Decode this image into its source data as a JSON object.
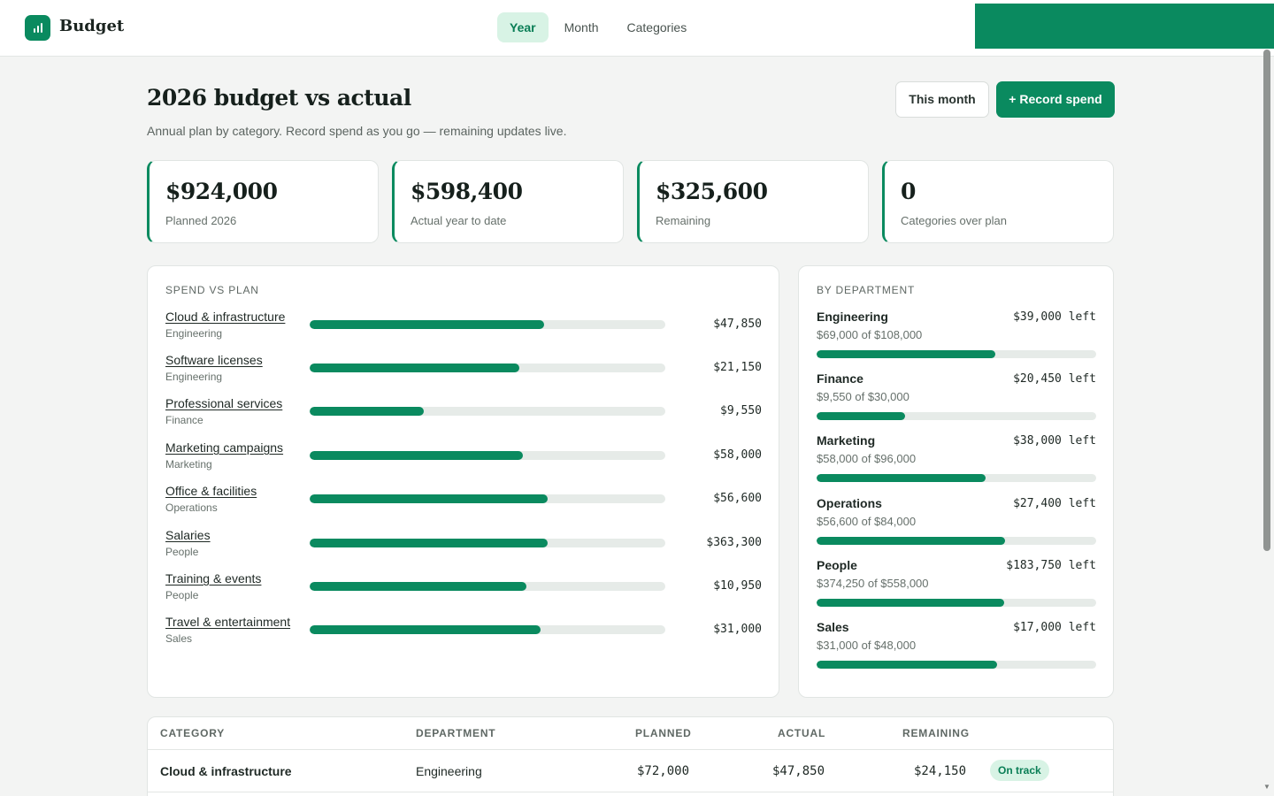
{
  "app": {
    "brand": "Budget"
  },
  "nav": {
    "tabs": [
      {
        "label": "Year",
        "active": true
      },
      {
        "label": "Month",
        "active": false
      },
      {
        "label": "Categories",
        "active": false
      }
    ]
  },
  "header": {
    "title": "2026 budget vs actual",
    "subtitle": "Annual plan by category. Record spend as you go — remaining updates live.",
    "this_month_label": "This month",
    "record_label": "+ Record spend"
  },
  "stats": [
    {
      "value": "$924,000",
      "label": "Planned 2026"
    },
    {
      "value": "$598,400",
      "label": "Actual year to date"
    },
    {
      "value": "$325,600",
      "label": "Remaining"
    },
    {
      "value": "0",
      "label": "Categories over plan"
    }
  ],
  "spend": {
    "title": "SPEND VS PLAN",
    "items": [
      {
        "name": "Cloud & infrastructure",
        "dept": "Engineering",
        "amount": "$47,850",
        "progress": 0.66
      },
      {
        "name": "Software licenses",
        "dept": "Engineering",
        "amount": "$21,150",
        "progress": 0.59
      },
      {
        "name": "Professional services",
        "dept": "Finance",
        "amount": "$9,550",
        "progress": 0.32
      },
      {
        "name": "Marketing campaigns",
        "dept": "Marketing",
        "amount": "$58,000",
        "progress": 0.6
      },
      {
        "name": "Office & facilities",
        "dept": "Operations",
        "amount": "$56,600",
        "progress": 0.67
      },
      {
        "name": "Salaries",
        "dept": "People",
        "amount": "$363,300",
        "progress": 0.67
      },
      {
        "name": "Training & events",
        "dept": "People",
        "amount": "$10,950",
        "progress": 0.61
      },
      {
        "name": "Travel & entertainment",
        "dept": "Sales",
        "amount": "$31,000",
        "progress": 0.65
      }
    ]
  },
  "departments": {
    "title": "BY DEPARTMENT",
    "items": [
      {
        "name": "Engineering",
        "left": "$39,000 left",
        "sub": "$69,000 of $108,000",
        "progress": 0.639
      },
      {
        "name": "Finance",
        "left": "$20,450 left",
        "sub": "$9,550 of $30,000",
        "progress": 0.318
      },
      {
        "name": "Marketing",
        "left": "$38,000 left",
        "sub": "$58,000 of $96,000",
        "progress": 0.604
      },
      {
        "name": "Operations",
        "left": "$27,400 left",
        "sub": "$56,600 of $84,000",
        "progress": 0.674
      },
      {
        "name": "People",
        "left": "$183,750 left",
        "sub": "$374,250 of $558,000",
        "progress": 0.671
      },
      {
        "name": "Sales",
        "left": "$17,000 left",
        "sub": "$31,000 of $48,000",
        "progress": 0.646
      }
    ]
  },
  "table": {
    "headers": {
      "category": "CATEGORY",
      "department": "DEPARTMENT",
      "planned": "PLANNED",
      "actual": "ACTUAL",
      "remaining": "REMAINING"
    },
    "rows": [
      {
        "category": "Cloud & infrastructure",
        "department": "Engineering",
        "planned": "$72,000",
        "actual": "$47,850",
        "remaining": "$24,150",
        "status": "On track"
      }
    ]
  },
  "colors": {
    "accent": "#0a8a5f",
    "accent_soft": "#d8f3e5",
    "track": "#e6ebe8"
  }
}
